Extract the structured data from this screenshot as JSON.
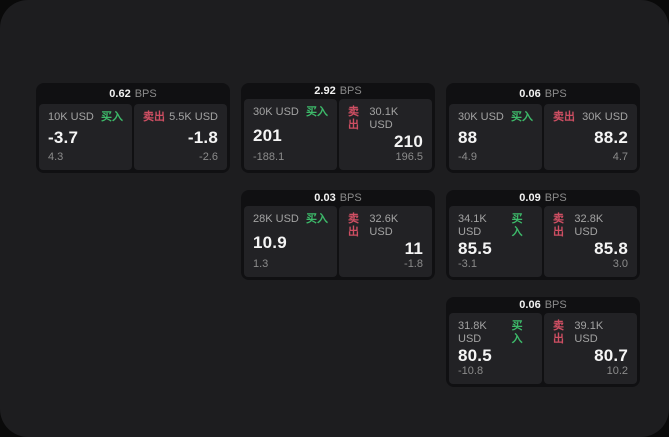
{
  "labels": {
    "bps_unit": "BPS",
    "buy": "买入",
    "sell": "卖出"
  },
  "colors": {
    "panel_background": "#1d1d1f",
    "card_background": "#101012",
    "pane_background": "#222225",
    "buy_green": "#3dba6a",
    "sell_red": "#cf4f63",
    "primary_text": "#f5f5f5",
    "secondary_text": "#8b8b8b"
  },
  "cards": [
    {
      "bps": "0.62",
      "buy": {
        "amount": "10K USD",
        "value": "-3.7",
        "sub": "4.3"
      },
      "sell": {
        "amount": "5.5K USD",
        "value": "-1.8",
        "sub": "-2.6"
      }
    },
    {
      "bps": "2.92",
      "buy": {
        "amount": "30K USD",
        "value": "201",
        "sub": "-188.1"
      },
      "sell": {
        "amount": "30.1K USD",
        "value": "210",
        "sub": "196.5"
      }
    },
    {
      "bps": "0.06",
      "buy": {
        "amount": "30K USD",
        "value": "88",
        "sub": "-4.9"
      },
      "sell": {
        "amount": "30K USD",
        "value": "88.2",
        "sub": "4.7"
      }
    },
    {
      "bps": "0.03",
      "buy": {
        "amount": "28K USD",
        "value": "10.9",
        "sub": "1.3"
      },
      "sell": {
        "amount": "32.6K USD",
        "value": "11",
        "sub": "-1.8"
      }
    },
    {
      "bps": "0.09",
      "buy": {
        "amount": "34.1K USD",
        "value": "85.5",
        "sub": "-3.1"
      },
      "sell": {
        "amount": "32.8K USD",
        "value": "85.8",
        "sub": "3.0"
      }
    },
    {
      "bps": "0.06",
      "buy": {
        "amount": "31.8K USD",
        "value": "80.5",
        "sub": "-10.8"
      },
      "sell": {
        "amount": "39.1K USD",
        "value": "80.7",
        "sub": "10.2"
      }
    }
  ]
}
